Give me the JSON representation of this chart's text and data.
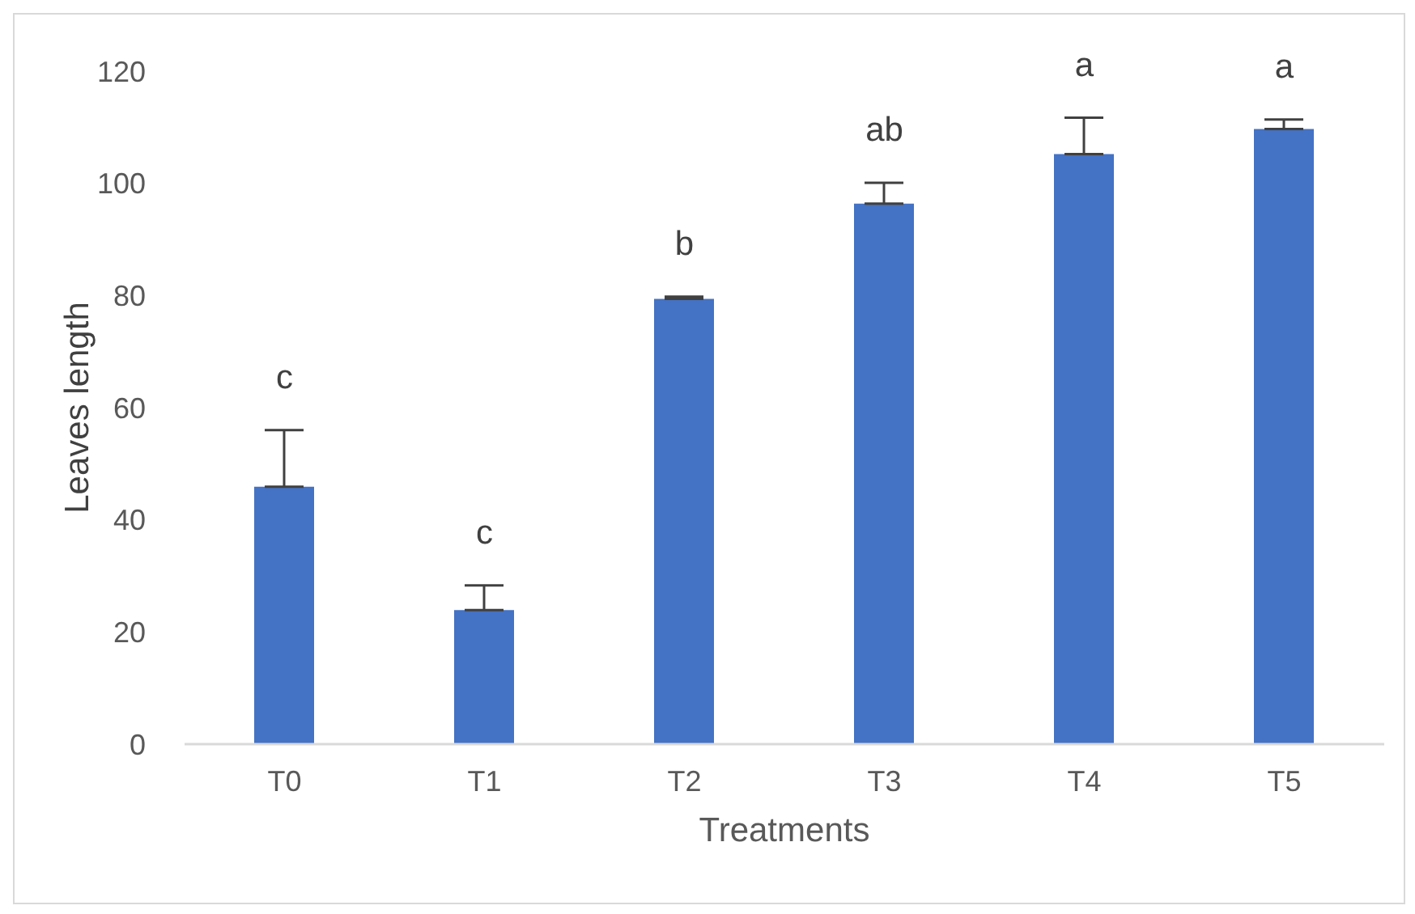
{
  "chart_data": {
    "type": "bar",
    "xlabel": "Treatments",
    "ylabel": "Leaves length",
    "categories": [
      "T0",
      "T1",
      "T2",
      "T3",
      "T4",
      "T5"
    ],
    "values": [
      45.9,
      23.9,
      79.4,
      96.4,
      105.2,
      109.7
    ],
    "errors": [
      [
        45.9,
        56
      ],
      [
        23.9,
        28.3
      ],
      [
        79.4,
        79.8
      ],
      [
        96.4,
        100.1
      ],
      [
        105.2,
        111.7
      ],
      [
        109.7,
        111.4
      ]
    ],
    "color": "#4472c4",
    "ylim": [
      0,
      120
    ],
    "yticks": [
      0,
      20,
      40,
      60,
      80,
      100,
      120
    ],
    "grid": false,
    "legend": false,
    "annotations": [
      "c",
      "c",
      "b",
      "ab",
      "a",
      "a"
    ]
  }
}
